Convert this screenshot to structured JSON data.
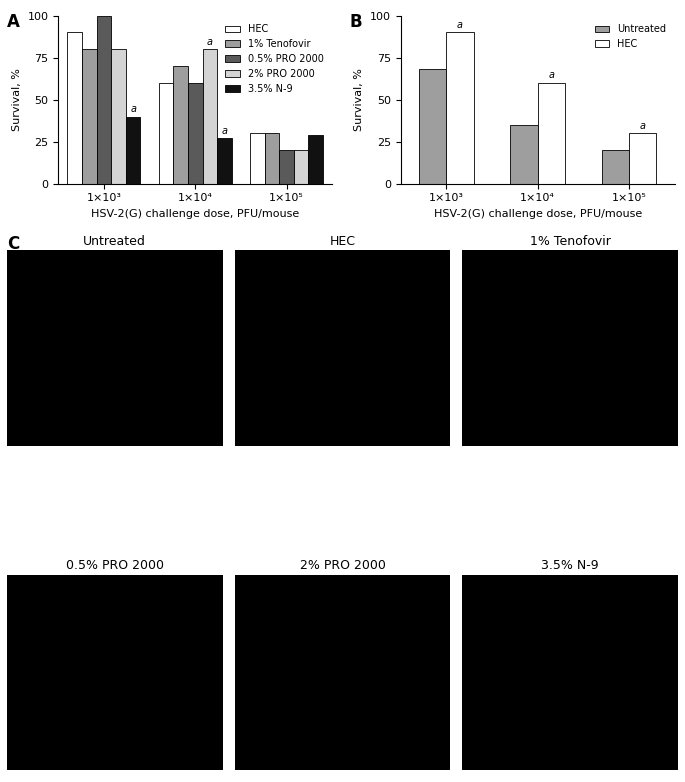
{
  "chart_data": [
    {
      "type": "bar",
      "label": "A",
      "xlabel": "HSV-2(G) challenge dose, PFU/mouse",
      "ylabel": "Survival, %",
      "categories": [
        "1×10³",
        "1×10⁴",
        "1×10⁵"
      ],
      "ylim": [
        0,
        100
      ],
      "yticks": [
        0,
        25,
        50,
        75,
        100
      ],
      "legend": "upper right",
      "series": [
        {
          "name": "HEC",
          "color": "#ffffff",
          "values": [
            90,
            60,
            30
          ],
          "annotations": [
            null,
            null,
            null
          ]
        },
        {
          "name": "1% Tenofovir",
          "color": "#9e9e9e",
          "values": [
            80,
            70,
            30
          ],
          "annotations": [
            null,
            null,
            null
          ]
        },
        {
          "name": "0.5% PRO 2000",
          "color": "#5a5a5a",
          "values": [
            100,
            60,
            20
          ],
          "annotations": [
            null,
            null,
            null
          ]
        },
        {
          "name": "2% PRO 2000",
          "color": "#d4d4d4",
          "values": [
            80,
            80,
            20
          ],
          "annotations": [
            null,
            "a",
            null
          ]
        },
        {
          "name": "3.5% N-9",
          "color": "#111111",
          "values": [
            40,
            27,
            29
          ],
          "annotations": [
            "a",
            "a",
            null
          ]
        }
      ]
    },
    {
      "type": "bar",
      "label": "B",
      "xlabel": "HSV-2(G) challenge dose, PFU/mouse",
      "ylabel": "Survival, %",
      "categories": [
        "1×10³",
        "1×10⁴",
        "1×10⁵"
      ],
      "ylim": [
        0,
        100
      ],
      "yticks": [
        0,
        25,
        50,
        75,
        100
      ],
      "legend": "upper right",
      "series": [
        {
          "name": "Untreated",
          "color": "#9e9e9e",
          "values": [
            68,
            35,
            20
          ],
          "annotations": [
            null,
            null,
            null
          ]
        },
        {
          "name": "HEC",
          "color": "#ffffff",
          "values": [
            90,
            60,
            30
          ],
          "annotations": [
            "a",
            "a",
            "a"
          ]
        }
      ]
    }
  ],
  "images": {
    "label": "C",
    "titles": [
      "Untreated",
      "HEC",
      "1% Tenofovir",
      "0.5% PRO 2000",
      "2% PRO 2000",
      "3.5% N-9"
    ]
  }
}
